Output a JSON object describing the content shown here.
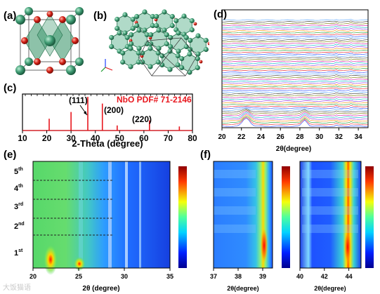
{
  "panels": {
    "a": {
      "label": "(a)"
    },
    "b": {
      "label": "(b)"
    },
    "c": {
      "label": "(c)",
      "pdf_label": "NbO PDF# 71-2146",
      "xlabel": "2-Theta (degree)",
      "xticks": [
        "10",
        "20",
        "30",
        "40",
        "50",
        "60",
        "70",
        "80"
      ],
      "peak_labels": [
        "(111)",
        "(200)",
        "(220)"
      ],
      "colors": {
        "pattern": "#e8161d",
        "label": "#e8161d"
      }
    },
    "d": {
      "label": "(d)",
      "xlabel": "2θ(degree)",
      "xticks": [
        "20",
        "22",
        "24",
        "26",
        "28",
        "30",
        "32",
        "34"
      ]
    },
    "e": {
      "label": "(e)",
      "xlabel": "2θ (degree)",
      "xticks": [
        "20",
        "25",
        "30",
        "35"
      ],
      "cycles": [
        {
          "num": "5",
          "sup": "th"
        },
        {
          "num": "4",
          "sup": "th"
        },
        {
          "num": "3",
          "sup": "rd"
        },
        {
          "num": "2",
          "sup": "nd"
        },
        {
          "num": "1",
          "sup": "st"
        }
      ]
    },
    "f": {
      "label": "(f)",
      "left": {
        "xlabel": "2θ(degree)",
        "xticks": [
          "37",
          "38",
          "39"
        ]
      },
      "right": {
        "xlabel": "2θ(degree)",
        "xticks": [
          "40",
          "42",
          "44"
        ]
      }
    }
  },
  "watermark": "大饭猫语",
  "chart_data": [
    {
      "type": "bar",
      "title": "NbO PDF# 71-2146",
      "xlabel": "2-Theta (degree)",
      "xlim": [
        10,
        80
      ],
      "x": [
        21,
        30,
        36.9,
        42.9,
        49,
        62.3,
        74.6
      ],
      "values": [
        0.35,
        0.55,
        1.0,
        0.8,
        0.15,
        0.3,
        0.12
      ],
      "annotations": [
        {
          "text": "(111)",
          "x": 36.9
        },
        {
          "text": "(200)",
          "x": 42.9
        },
        {
          "text": "(220)",
          "x": 62.3
        }
      ]
    },
    {
      "type": "line",
      "xlabel": "2θ(degree)",
      "xlim": [
        20,
        35
      ],
      "stacked_pattern_count": 60,
      "features_x": [
        22.5,
        28.5,
        31.8,
        33.2
      ]
    },
    {
      "type": "heatmap",
      "xlabel": "2θ (degree)",
      "xlim": [
        20,
        35
      ],
      "cycle_labels": [
        "1st",
        "2nd",
        "3rd",
        "4th",
        "5th"
      ]
    },
    {
      "type": "heatmap",
      "xlabel": "2θ(degree)",
      "xlim": [
        37,
        39.4
      ]
    },
    {
      "type": "heatmap",
      "xlabel": "2θ(degree)",
      "xlim": [
        40,
        45
      ]
    }
  ]
}
